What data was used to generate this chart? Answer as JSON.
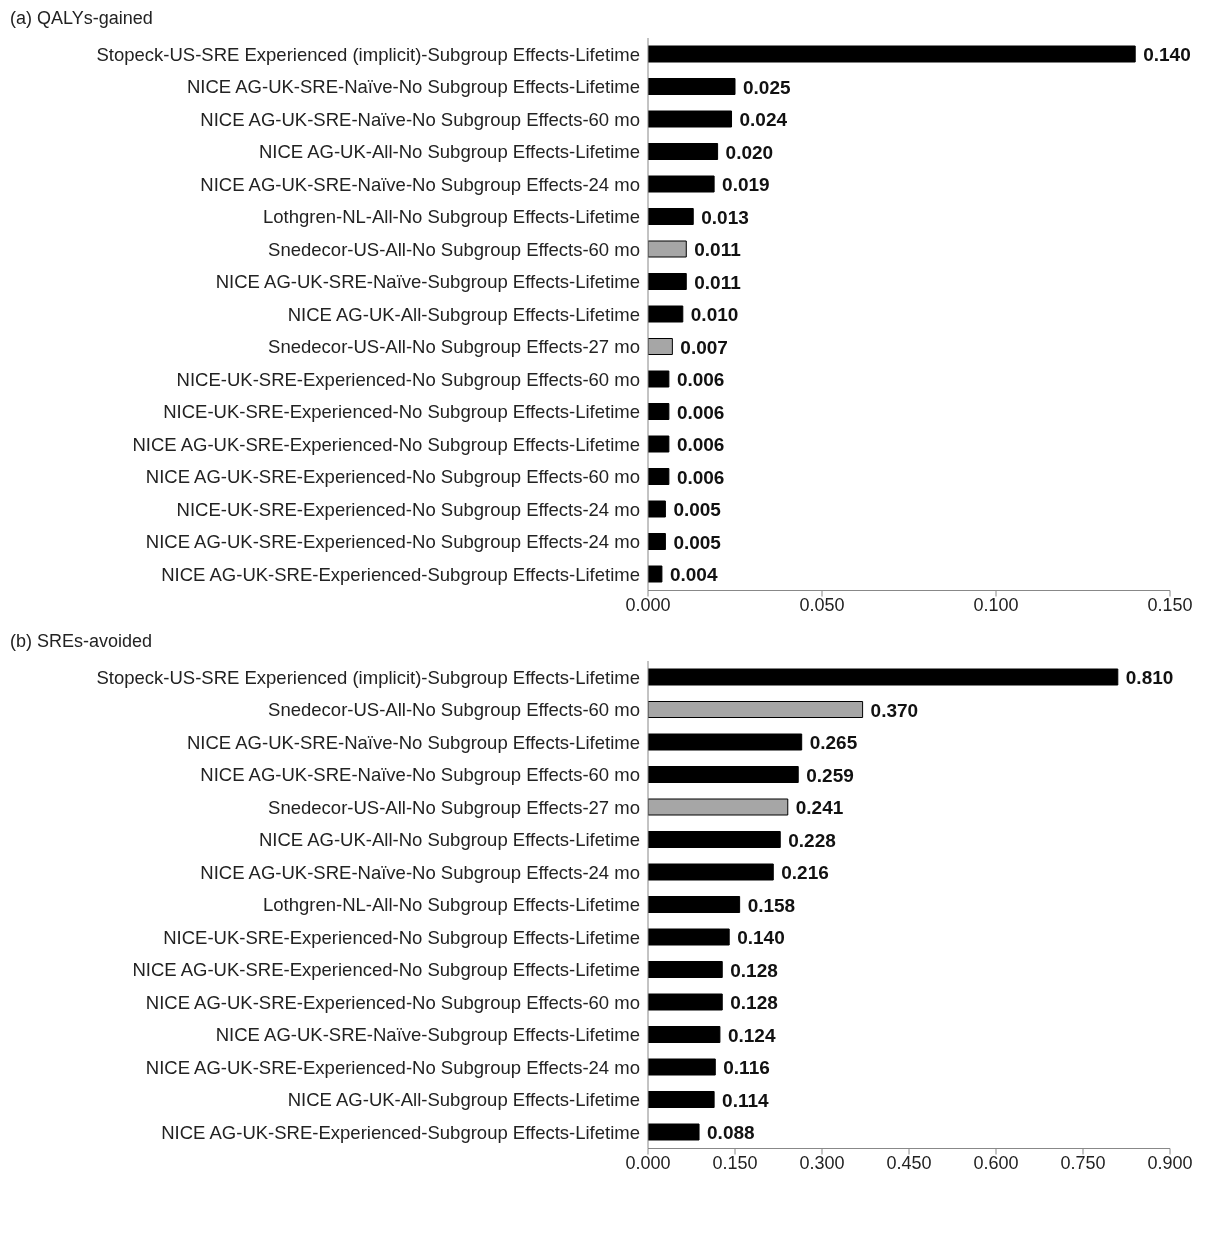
{
  "chart_data": [
    {
      "type": "bar",
      "orientation": "horizontal",
      "title": "(a) QALYs-gained",
      "grid": false,
      "categories": [
        "Stopeck-US-SRE Experienced (implicit)-Subgroup Effects-Lifetime",
        "NICE AG-UK-SRE-Naïve-No Subgroup Effects-Lifetime",
        "NICE AG-UK-SRE-Naïve-No Subgroup Effects-60 mo",
        "NICE AG-UK-All-No Subgroup Effects-Lifetime",
        "NICE AG-UK-SRE-Naïve-No Subgroup Effects-24 mo",
        "Lothgren-NL-All-No Subgroup Effects-Lifetime",
        "Snedecor-US-All-No Subgroup Effects-60 mo",
        "NICE AG-UK-SRE-Naïve-Subgroup Effects-Lifetime",
        "NICE AG-UK-All-Subgroup Effects-Lifetime",
        "Snedecor-US-All-No Subgroup Effects-27 mo",
        "NICE-UK-SRE-Experienced-No Subgroup Effects-60 mo",
        "NICE-UK-SRE-Experienced-No Subgroup Effects-Lifetime",
        "NICE AG-UK-SRE-Experienced-No Subgroup Effects-Lifetime",
        "NICE AG-UK-SRE-Experienced-No Subgroup Effects-60 mo",
        "NICE-UK-SRE-Experienced-No Subgroup Effects-24 mo",
        "NICE AG-UK-SRE-Experienced-No Subgroup Effects-24 mo",
        "NICE AG-UK-SRE-Experienced-Subgroup Effects-Lifetime"
      ],
      "values": [
        0.14,
        0.025,
        0.024,
        0.02,
        0.019,
        0.013,
        0.011,
        0.011,
        0.01,
        0.007,
        0.006,
        0.006,
        0.006,
        0.006,
        0.005,
        0.005,
        0.004
      ],
      "value_labels": [
        "0.140",
        "0.025",
        "0.024",
        "0.020",
        "0.019",
        "0.013",
        "0.011",
        "0.011",
        "0.010",
        "0.007",
        "0.006",
        "0.006",
        "0.006",
        "0.006",
        "0.005",
        "0.005",
        "0.004"
      ],
      "colors": [
        "#000000",
        "#000000",
        "#000000",
        "#000000",
        "#000000",
        "#000000",
        "#a6a6a6",
        "#000000",
        "#000000",
        "#a6a6a6",
        "#000000",
        "#000000",
        "#000000",
        "#000000",
        "#000000",
        "#000000",
        "#000000"
      ],
      "xlim": [
        0,
        0.15
      ],
      "xticks": [
        {
          "value": 0,
          "label": "0.000"
        },
        {
          "value": 0.05,
          "label": "0.050"
        },
        {
          "value": 0.1,
          "label": "0.100"
        },
        {
          "value": 0.15,
          "label": "0.150"
        }
      ]
    },
    {
      "type": "bar",
      "orientation": "horizontal",
      "title": "(b) SREs-avoided",
      "grid": false,
      "categories": [
        "Stopeck-US-SRE Experienced (implicit)-Subgroup Effects-Lifetime",
        "Snedecor-US-All-No Subgroup Effects-60 mo",
        "NICE AG-UK-SRE-Naïve-No Subgroup Effects-Lifetime",
        "NICE AG-UK-SRE-Naïve-No Subgroup Effects-60 mo",
        "Snedecor-US-All-No Subgroup Effects-27 mo",
        "NICE AG-UK-All-No Subgroup Effects-Lifetime",
        "NICE AG-UK-SRE-Naïve-No Subgroup Effects-24 mo",
        "Lothgren-NL-All-No Subgroup Effects-Lifetime",
        "NICE-UK-SRE-Experienced-No Subgroup Effects-Lifetime",
        "NICE AG-UK-SRE-Experienced-No Subgroup Effects-Lifetime",
        "NICE AG-UK-SRE-Experienced-No Subgroup Effects-60 mo",
        "NICE AG-UK-SRE-Naïve-Subgroup Effects-Lifetime",
        "NICE AG-UK-SRE-Experienced-No Subgroup Effects-24 mo",
        "NICE AG-UK-All-Subgroup Effects-Lifetime",
        "NICE AG-UK-SRE-Experienced-Subgroup Effects-Lifetime"
      ],
      "values": [
        0.81,
        0.37,
        0.265,
        0.259,
        0.241,
        0.228,
        0.216,
        0.158,
        0.14,
        0.128,
        0.128,
        0.124,
        0.116,
        0.114,
        0.088
      ],
      "value_labels": [
        "0.810",
        "0.370",
        "0.265",
        "0.259",
        "0.241",
        "0.228",
        "0.216",
        "0.158",
        "0.140",
        "0.128",
        "0.128",
        "0.124",
        "0.116",
        "0.114",
        "0.088"
      ],
      "colors": [
        "#000000",
        "#a6a6a6",
        "#000000",
        "#000000",
        "#a6a6a6",
        "#000000",
        "#000000",
        "#000000",
        "#000000",
        "#000000",
        "#000000",
        "#000000",
        "#000000",
        "#000000",
        "#000000"
      ],
      "xlim": [
        0,
        0.9
      ],
      "xticks": [
        {
          "value": 0,
          "label": "0.000"
        },
        {
          "value": 0.15,
          "label": "0.150"
        },
        {
          "value": 0.3,
          "label": "0.300"
        },
        {
          "value": 0.45,
          "label": "0.450"
        },
        {
          "value": 0.6,
          "label": "0.600"
        },
        {
          "value": 0.75,
          "label": "0.750"
        },
        {
          "value": 0.9,
          "label": "0.900"
        }
      ]
    }
  ]
}
